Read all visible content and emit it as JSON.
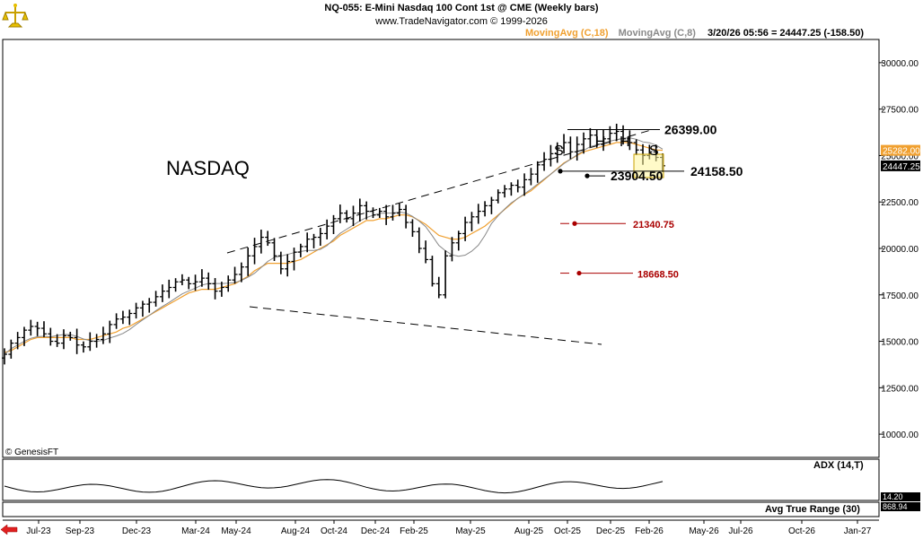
{
  "header": {
    "title": "NQ-055:  E-Mini Nasdaq 100 Cont 1st @ CME  (Weekly bars)",
    "subtitle": "www.TradeNavigator.com © 1999-2026"
  },
  "legend": {
    "ma18": "MovingAvg (C,18)",
    "ma8": "MovingAvg (C,8)",
    "quote": "3/20/26 05:56 = 24447.25 (-158.50)",
    "ma18_color": "#f0a030",
    "ma8_color": "#8a8a8a"
  },
  "watermark": "© GenesisFT",
  "chart_data": {
    "type": "candlestick",
    "annotation": "NASDAQ",
    "y_ticks": [
      "30000.00",
      "27500.00",
      "25000.00",
      "22500.00",
      "20000.00",
      "17500.00",
      "15000.00",
      "12500.00",
      "10000.00"
    ],
    "ylim": [
      8750,
      31250
    ],
    "x_ticks": [
      "Jul-23",
      "Sep-23",
      "Dec-23",
      "Mar-24",
      "May-24",
      "Aug-24",
      "Oct-24",
      "Dec-24",
      "Feb-25",
      "May-25",
      "Aug-25",
      "Oct-25",
      "Dec-25",
      "Feb-26",
      "May-26",
      "Jul-26",
      "Oct-26",
      "Jan-27"
    ],
    "price_tags": [
      {
        "label": "25282.00",
        "value": 25282.0,
        "color": "#f0a030"
      },
      {
        "label": "24447.25",
        "value": 24447.25,
        "color": "#ffffff"
      }
    ],
    "levels": [
      {
        "label": "26399.00",
        "value": 26399.0,
        "color": "#000000"
      },
      {
        "label": "24158.50",
        "value": 24158.5,
        "color": "#000000"
      },
      {
        "label": "23904.50",
        "value": 23904.5,
        "color": "#000000"
      },
      {
        "label": "21340.75",
        "value": 21340.75,
        "color": "#aa0000"
      },
      {
        "label": "18668.50",
        "value": 18668.5,
        "color": "#aa0000"
      }
    ],
    "pattern_labels": [
      "S",
      "H",
      "H",
      "S"
    ],
    "closes": [
      14300,
      14900,
      15200,
      15600,
      15800,
      15700,
      15400,
      15000,
      14900,
      15300,
      15200,
      14800,
      14700,
      15000,
      15100,
      15400,
      15900,
      16200,
      16300,
      16500,
      16800,
      17000,
      17100,
      17400,
      17700,
      17900,
      18200,
      18300,
      18100,
      18200,
      18400,
      18100,
      17700,
      17900,
      18300,
      18600,
      19000,
      19600,
      20100,
      20600,
      20300,
      19600,
      18900,
      19300,
      19800,
      20100,
      20500,
      20600,
      20800,
      21200,
      21600,
      21900,
      21600,
      21900,
      22300,
      22000,
      21800,
      22000,
      21700,
      21900,
      22100,
      21400,
      20900,
      20000,
      19400,
      18100,
      17500,
      19600,
      20300,
      20800,
      21400,
      21700,
      22000,
      22300,
      22600,
      23000,
      23200,
      23400,
      23300,
      23700,
      24000,
      24500,
      24800,
      25100,
      25400,
      25700,
      25200,
      25600,
      25900,
      26100,
      25600,
      25900,
      26200,
      26300,
      25900,
      25700,
      25300,
      25000,
      25200,
      24900,
      24450
    ],
    "ma18_values": [
      14400,
      14500,
      14700,
      14900,
      15100,
      15200,
      15200,
      15200,
      15200,
      15200,
      15200,
      15100,
      15100,
      15100,
      15200,
      15300,
      15400,
      15500,
      15700,
      15800,
      16000,
      16200,
      16400,
      16600,
      16800,
      17000,
      17200,
      17400,
      17600,
      17700,
      17800,
      17800,
      17800,
      17900,
      18000,
      18100,
      18300,
      18500,
      18800,
      19000,
      19200,
      19200,
      19200,
      19200,
      19300,
      19400,
      19600,
      19800,
      20000,
      20200,
      20400,
      20700,
      20900,
      21100,
      21300,
      21500,
      21500,
      21600,
      21600,
      21700,
      21800,
      21800,
      21700,
      21500,
      21300,
      21000,
      20700,
      20600,
      20500,
      20500,
      20600,
      20800,
      21000,
      21200,
      21500,
      21800,
      22100,
      22400,
      22700,
      22900,
      23100,
      23400,
      23700,
      24000,
      24300,
      24600,
      24800,
      25000,
      25200,
      25300,
      25400,
      25500,
      25600,
      25700,
      25700,
      25700,
      25600,
      25500,
      25400,
      25300,
      25282
    ]
  },
  "adx_panel": {
    "label": "ADX (14,T)",
    "value": "14.20"
  },
  "atr_panel": {
    "label": "Avg True Range (30)",
    "value": "868.94"
  }
}
